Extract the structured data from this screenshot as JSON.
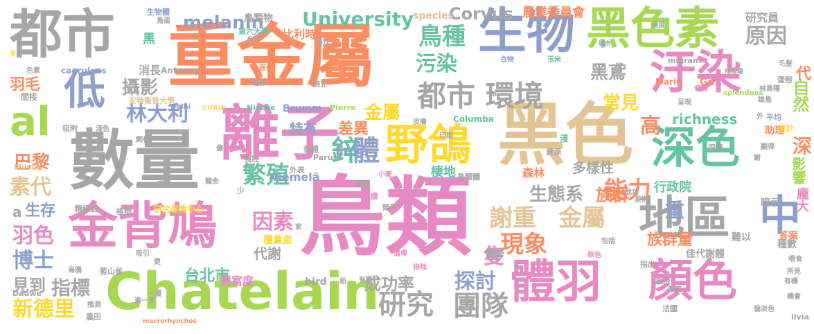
{
  "words": [
    {
      "text": "鳥類",
      "color": "#e78ac3"
    },
    {
      "text": "黑色",
      "color": "#e5c494"
    },
    {
      "text": "重金屬",
      "color": "#fc8d62"
    },
    {
      "text": "數量",
      "color": "#a6a6a6"
    },
    {
      "text": "離子",
      "color": "#e78ac3"
    },
    {
      "text": "金背鳩",
      "color": "#e78ac3"
    },
    {
      "text": "Chatelain",
      "color": "#a6d854"
    },
    {
      "text": "都市",
      "color": "#a6a6a6"
    },
    {
      "text": "生物",
      "color": "#8da0cb"
    },
    {
      "text": "黑色素",
      "color": "#a6d854"
    },
    {
      "text": "汙染",
      "color": "#e78ac3"
    },
    {
      "text": "深色",
      "color": "#66c2a5"
    },
    {
      "text": "地區",
      "color": "#a6a6a6"
    },
    {
      "text": "體羽",
      "color": "#e78ac3"
    },
    {
      "text": "顏色",
      "color": "#e78ac3"
    },
    {
      "text": "野鴿",
      "color": "#ffd92f"
    },
    {
      "text": "中",
      "color": "#8da0cb"
    },
    {
      "text": "低",
      "color": "#8da0cb"
    },
    {
      "text": "al",
      "color": "#a6d854"
    },
    {
      "text": "都市 環境",
      "color": "#a6a6a6"
    },
    {
      "text": "鳥種",
      "color": "#66c2a5"
    },
    {
      "text": "University",
      "color": "#66c2a5"
    },
    {
      "text": "melanin",
      "color": "#8da0cb"
    },
    {
      "text": "Corvus",
      "color": "#a6a6a6"
    },
    {
      "text": "農業委員會",
      "color": "#fc8d62"
    },
    {
      "text": "研究員",
      "color": "#a6a6a6"
    },
    {
      "text": "原因",
      "color": "#a6a6a6"
    },
    {
      "text": "自然",
      "color": "#a6d854"
    },
    {
      "text": "林大利",
      "color": "#8da0cb"
    },
    {
      "text": "繁殖",
      "color": "#66c2a5"
    },
    {
      "text": "謝重",
      "color": "#e5c494"
    },
    {
      "text": "金屬",
      "color": "#e5c494"
    },
    {
      "text": "現象",
      "color": "#fc8d62"
    },
    {
      "text": "研究",
      "color": "#a6a6a6"
    },
    {
      "text": "團隊",
      "color": "#a6a6a6"
    },
    {
      "text": "成功率",
      "color": "#a6a6a6"
    },
    {
      "text": "探討",
      "color": "#8da0cb"
    },
    {
      "text": "指標",
      "color": "#a6a6a6"
    },
    {
      "text": "新德里",
      "color": "#ffd92f"
    },
    {
      "text": "博士",
      "color": "#8da0cb"
    },
    {
      "text": "羽色",
      "color": "#e78ac3"
    },
    {
      "text": "素代",
      "color": "#e5c494"
    },
    {
      "text": "巴黎",
      "color": "#fc8d62"
    },
    {
      "text": "生存",
      "color": "#8da0cb"
    },
    {
      "text": "攝影",
      "color": "#a6a6a6"
    },
    {
      "text": "羽毛",
      "color": "#fc8d62"
    },
    {
      "text": "污染",
      "color": "#66c2a5"
    },
    {
      "text": "黑鳶",
      "color": "#a6a6a6"
    },
    {
      "text": "常見",
      "color": "#ffd92f"
    },
    {
      "text": "能力",
      "color": "#fc8d62"
    },
    {
      "text": "生態系",
      "color": "#a6a6a6"
    },
    {
      "text": "因素",
      "color": "#e78ac3"
    },
    {
      "text": "台北市",
      "color": "#66c2a5"
    },
    {
      "text": "鋅",
      "color": "#66c2a5"
    },
    {
      "text": "體",
      "color": "#8da0cb"
    },
    {
      "text": "金屬",
      "color": "#ffd92f"
    },
    {
      "text": "特有",
      "color": "#8da0cb"
    },
    {
      "text": "差異",
      "color": "#fc8d62"
    },
    {
      "text": "richness",
      "color": "#66c2a5"
    },
    {
      "text": "高",
      "color": "#fc8d62"
    },
    {
      "text": "多樣性",
      "color": "#a6a6a6"
    },
    {
      "text": "族群",
      "color": "#fc8d62"
    },
    {
      "text": "行政院",
      "color": "#66c2a5"
    },
    {
      "text": "深",
      "color": "#fc8d62"
    },
    {
      "text": "影響",
      "color": "#a6d854"
    },
    {
      "text": "重",
      "color": "#8da0cb"
    },
    {
      "text": "隻",
      "color": "#e78ac3"
    },
    {
      "text": "代謝",
      "color": "#a6a6a6"
    },
    {
      "text": "豐富度",
      "color": "#e78ac3"
    },
    {
      "text": "族群量",
      "color": "#fc8d62"
    },
    {
      "text": "Niemelä",
      "color": "#8da0cb"
    },
    {
      "text": "Eeva",
      "color": "#8da0cb"
    },
    {
      "text": "棲地",
      "color": "#66c2a5"
    },
    {
      "text": "森林",
      "color": "#fc8d62"
    },
    {
      "text": "優勢",
      "color": "#a6a6a6"
    },
    {
      "text": "代",
      "color": "#fc8d62"
    },
    {
      "text": "見到",
      "color": "#a6a6a6"
    },
    {
      "text": "黑",
      "color": "#66c2a5"
    },
    {
      "text": "消長",
      "color": "#a6a6a6"
    },
    {
      "text": "鳥類物",
      "color": "#a6a6a6"
    },
    {
      "text": "比利時",
      "color": "#fc8d62"
    },
    {
      "text": "species",
      "color": "#e5c494"
    },
    {
      "text": "第六大學",
      "color": "#66c2a5"
    },
    {
      "text": "安特衛普大學",
      "color": "#e5c494"
    },
    {
      "text": "Brumm",
      "color": "#8da0cb"
    },
    {
      "text": "Pierre",
      "color": "#a6d854"
    },
    {
      "text": "Niecke",
      "color": "#66c2a5"
    },
    {
      "text": "精細胞",
      "color": "#a6a6a6"
    },
    {
      "text": "研究保育中心",
      "color": "#ffd92f"
    },
    {
      "text": "覆蓋度",
      "color": "#ffd92f"
    },
    {
      "text": "佳",
      "color": "#a6a6a6"
    },
    {
      "text": "代謝體",
      "color": "#a6a6a6"
    },
    {
      "text": "難以",
      "color": "#a6a6a6"
    },
    {
      "text": "龐大",
      "color": "#e78ac3"
    },
    {
      "text": "答案",
      "color": "#fc8d62"
    },
    {
      "text": "種數",
      "color": "#a6a6a6"
    },
    {
      "text": "暗示",
      "color": "#a6a6a6"
    },
    {
      "text": "助理",
      "color": "#fc8d62"
    },
    {
      "text": "平均",
      "color": "#8da0cb"
    },
    {
      "text": "高於",
      "color": "#ffd92f"
    },
    {
      "text": "雄鳥",
      "color": "#a6a6a6"
    },
    {
      "text": "蛋殼",
      "color": "#a6a6a6"
    },
    {
      "text": "毛髮",
      "color": "#a6a6a6"
    },
    {
      "text": "林鳥種",
      "color": "#a6a6a6"
    },
    {
      "text": "Gil",
      "color": "#fc8d62"
    },
    {
      "text": "Marie",
      "color": "#fc8d62"
    },
    {
      "text": "migrans",
      "color": "#a6a6a6"
    },
    {
      "text": "splendens",
      "color": "#a6d854"
    },
    {
      "text": "caeruleus",
      "color": "#8da0cb"
    },
    {
      "text": "Antwerp",
      "color": "#a6a6a6"
    },
    {
      "text": "Delhi",
      "color": "#8da0cb"
    },
    {
      "text": "CURIE",
      "color": "#ffd92f"
    },
    {
      "text": "Columba",
      "color": "#66c2a5"
    },
    {
      "text": "Parus",
      "color": "#a6a6a6"
    },
    {
      "text": "Milvus",
      "color": "#e5c494"
    },
    {
      "text": "bird",
      "color": "#a6a6a6"
    },
    {
      "text": "Dauwe",
      "color": "#a6a6a6"
    },
    {
      "text": "macrorhynchos",
      "color": "#fc8d62"
    },
    {
      "text": "livia",
      "color": "#a6a6a6"
    },
    {
      "text": "a",
      "color": "#a6a6a6"
    },
    {
      "text": "生物體",
      "color": "#8da0cb"
    },
    {
      "text": "鳥蛋",
      "color": "#a6a6a6"
    },
    {
      "text": "戶外",
      "color": "#a6a6a6"
    },
    {
      "text": "異性",
      "color": "#a6a6a6"
    },
    {
      "text": "合物",
      "color": "#8da0cb"
    },
    {
      "text": "玉米",
      "color": "#66c2a5"
    },
    {
      "text": "城市",
      "color": "#8da0cb"
    },
    {
      "text": "首都",
      "color": "#fc8d62"
    },
    {
      "text": "輕微",
      "color": "#a6a6a6"
    },
    {
      "text": "豌豆",
      "color": "#a6a6a6"
    },
    {
      "text": "濃度",
      "color": "#a6a6a6"
    },
    {
      "text": "呈現",
      "color": "#a6a6a6"
    },
    {
      "text": "偏深",
      "color": "#e78ac3"
    },
    {
      "text": "掩埋場",
      "color": "#a6a6a6"
    },
    {
      "text": "間接",
      "color": "#a6a6a6"
    },
    {
      "text": "吸附",
      "color": "#a6a6a6"
    },
    {
      "text": "淺色",
      "color": "#a6a6a6"
    },
    {
      "text": "飼養",
      "color": "#a6a6a6"
    },
    {
      "text": "皮膚",
      "color": "#a6a6a6"
    },
    {
      "text": "印度",
      "color": "#a6a6a6"
    },
    {
      "text": "資源",
      "color": "#a6a6a6"
    },
    {
      "text": "深淺",
      "color": "#a6a6a6"
    },
    {
      "text": "顯得",
      "color": "#a6a6a6"
    },
    {
      "text": "謝",
      "color": "#a6a6a6"
    },
    {
      "text": "淺",
      "color": "#66c2a5"
    },
    {
      "text": "個體",
      "color": "#a6a6a6"
    },
    {
      "text": "外表",
      "color": "#a6a6a6"
    },
    {
      "text": "強壯",
      "color": "#a6a6a6"
    },
    {
      "text": "小麥",
      "color": "#e78ac3"
    },
    {
      "text": "鳥類體",
      "color": "#a6a6a6"
    },
    {
      "text": "健康",
      "color": "#e78ac3"
    },
    {
      "text": "動物",
      "color": "#a6a6a6"
    },
    {
      "text": "成功",
      "color": "#a6a6a6"
    },
    {
      "text": "差別",
      "color": "#a6a6a6"
    },
    {
      "text": "包括",
      "color": "#a6a6a6"
    },
    {
      "text": "排除",
      "color": "#e78ac3"
    },
    {
      "text": "棕色",
      "color": "#e78ac3"
    },
    {
      "text": "血液",
      "color": "#a6a6a6"
    },
    {
      "text": "指出",
      "color": "#a6a6a6"
    },
    {
      "text": "厚度",
      "color": "#a6a6a6"
    },
    {
      "text": "法國",
      "color": "#a6a6a6"
    },
    {
      "text": "偏淡色",
      "color": "#a6a6a6"
    },
    {
      "text": "機會",
      "color": "#a6a6a6"
    },
    {
      "text": "有機",
      "color": "#a6a6a6"
    },
    {
      "text": "所見",
      "color": "#a6a6a6"
    },
    {
      "text": "喂食",
      "color": "#a6a6a6"
    },
    {
      "text": "值得",
      "color": "#e78ac3"
    },
    {
      "text": "有專",
      "color": "#a6a6a6"
    },
    {
      "text": "一巢",
      "color": "#a6a6a6"
    },
    {
      "text": "進一步",
      "color": "#a6a6a6"
    },
    {
      "text": "推測",
      "color": "#a6a6a6"
    },
    {
      "text": "農田",
      "color": "#a6a6a6"
    },
    {
      "text": "藍山雀",
      "color": "#a6a6a6"
    },
    {
      "text": "烏鴉",
      "color": "#a6a6a6"
    },
    {
      "text": "植物",
      "color": "#a6a6a6"
    },
    {
      "text": "吸引",
      "color": "#a6a6a6"
    },
    {
      "text": "色素",
      "color": "#a6a6a6"
    },
    {
      "text": "年",
      "color": "#ffd92f"
    },
    {
      "text": "少",
      "color": "#a6a6a6"
    },
    {
      "text": "化",
      "color": "#a6a6a6"
    },
    {
      "text": "更",
      "color": "#a6a6a6"
    },
    {
      "text": "鉛",
      "color": "#a6a6a6"
    },
    {
      "text": "偏",
      "color": "#a6a6a6"
    },
    {
      "text": "項",
      "color": "#a6a6a6"
    },
    {
      "text": "b",
      "color": "#a6a6a6"
    },
    {
      "text": "競爭",
      "color": "#a6a6a6"
    },
    {
      "text": "龍舍",
      "color": "#a6a6a6"
    },
    {
      "text": "家",
      "color": "#a6a6a6"
    },
    {
      "text": "外",
      "color": "#a6a6a6"
    }
  ]
}
